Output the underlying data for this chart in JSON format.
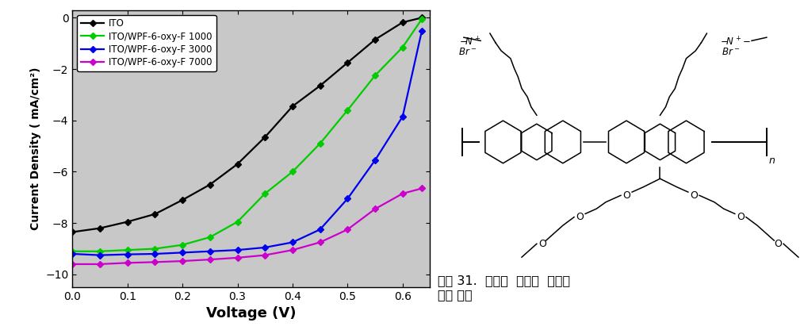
{
  "xlabel": "Voltage (V)",
  "ylabel": "Current Density ( mA/cm²)",
  "xlim": [
    0.0,
    0.65
  ],
  "ylim": [
    -10.5,
    0.3
  ],
  "xticks": [
    0.0,
    0.1,
    0.2,
    0.3,
    0.4,
    0.5,
    0.6
  ],
  "yticks": [
    0,
    -2,
    -4,
    -6,
    -8,
    -10
  ],
  "plot_bg": "#c8c8c8",
  "series": [
    {
      "label": "ITO",
      "color": "black",
      "x": [
        0.0,
        0.05,
        0.1,
        0.15,
        0.2,
        0.25,
        0.3,
        0.35,
        0.4,
        0.45,
        0.5,
        0.55,
        0.6,
        0.635
      ],
      "y": [
        -8.35,
        -8.2,
        -7.95,
        -7.65,
        -7.1,
        -6.5,
        -5.7,
        -4.65,
        -3.45,
        -2.65,
        -1.75,
        -0.85,
        -0.18,
        0.0
      ]
    },
    {
      "label": "ITO/WPF-6-oxy-F 1000",
      "color": "#00cc00",
      "x": [
        0.0,
        0.05,
        0.1,
        0.15,
        0.2,
        0.25,
        0.3,
        0.35,
        0.4,
        0.45,
        0.5,
        0.55,
        0.6,
        0.635
      ],
      "y": [
        -9.1,
        -9.1,
        -9.05,
        -9.0,
        -8.85,
        -8.55,
        -7.95,
        -6.85,
        -6.0,
        -4.9,
        -3.6,
        -2.25,
        -1.15,
        -0.05
      ]
    },
    {
      "label": "ITO/WPF-6-oxy-F 3000",
      "color": "#0000ee",
      "x": [
        0.0,
        0.05,
        0.1,
        0.15,
        0.2,
        0.25,
        0.3,
        0.35,
        0.4,
        0.45,
        0.5,
        0.55,
        0.6,
        0.635
      ],
      "y": [
        -9.2,
        -9.25,
        -9.22,
        -9.2,
        -9.15,
        -9.1,
        -9.05,
        -8.95,
        -8.75,
        -8.25,
        -7.05,
        -5.55,
        -3.85,
        -0.5
      ]
    },
    {
      "label": "ITO/WPF-6-oxy-F 7000",
      "color": "#cc00cc",
      "x": [
        0.0,
        0.05,
        0.1,
        0.15,
        0.2,
        0.25,
        0.3,
        0.35,
        0.4,
        0.45,
        0.5,
        0.55,
        0.6,
        0.635
      ],
      "y": [
        -9.6,
        -9.6,
        -9.55,
        -9.52,
        -9.48,
        -9.42,
        -9.35,
        -9.25,
        -9.05,
        -8.75,
        -8.25,
        -7.45,
        -6.85,
        -6.65
      ]
    }
  ],
  "caption": "그림 31.  수용성  고분자  물질의\n화학 구조"
}
